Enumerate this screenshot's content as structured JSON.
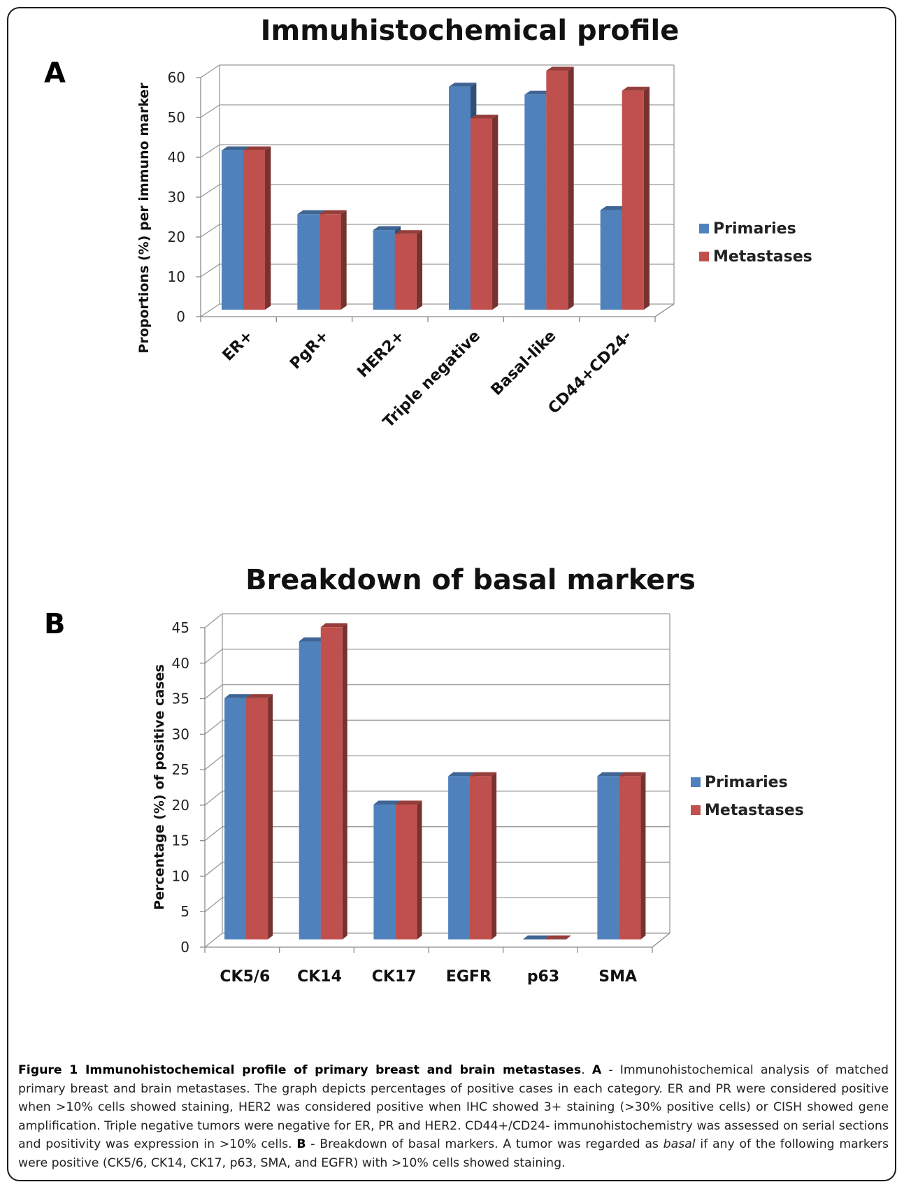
{
  "panels": {
    "a": "A",
    "b": "B"
  },
  "chart_data": [
    {
      "type": "bar",
      "title": "Immuhistochemical profile",
      "xlabel": "",
      "ylabel": "Proportions (%) per immuno marker",
      "ylim": [
        0,
        60
      ],
      "yticks": [
        0,
        10,
        20,
        30,
        40,
        50,
        60
      ],
      "grid": true,
      "legend": "right",
      "categories": [
        "ER+",
        "PgR+",
        "HER2+",
        "Triple negative",
        "Basal-like",
        "CD44+CD24-"
      ],
      "series": [
        {
          "name": "Primaries",
          "values": [
            40,
            24,
            20,
            56,
            54,
            25
          ],
          "color": "#4f81bd"
        },
        {
          "name": "Metastases",
          "values": [
            40,
            24,
            19,
            48,
            60,
            55
          ],
          "color": "#c0504d"
        }
      ]
    },
    {
      "type": "bar",
      "title": "Breakdown of basal markers",
      "xlabel": "",
      "ylabel": "Percentage (%) of positive cases",
      "ylim": [
        0,
        45
      ],
      "yticks": [
        0,
        5,
        10,
        15,
        20,
        25,
        30,
        35,
        40,
        45
      ],
      "grid": true,
      "legend": "right",
      "categories": [
        "CK5/6",
        "CK14",
        "CK17",
        "EGFR",
        "p63",
        "SMA"
      ],
      "series": [
        {
          "name": "Primaries",
          "values": [
            34,
            42,
            19,
            23,
            0,
            23
          ],
          "color": "#4f81bd"
        },
        {
          "name": "Metastases",
          "values": [
            34,
            44,
            19,
            23,
            0,
            23
          ],
          "color": "#c0504d"
        }
      ]
    }
  ],
  "caption": {
    "label": "Figure 1 Immunohistochemical profile of primary breast and brain metastases",
    "sep1": ". ",
    "a_label": "A",
    "a_text": " - Immunohistochemical analysis of matched primary breast and brain metastases. The graph depicts percentages of positive cases in each category. ER and PR were considered positive when >10% cells showed staining, HER2 was considered positive when IHC showed 3+ staining (>30% positive cells) or CISH showed gene amplification. Triple negative tumors were negative for ER, PR and HER2. CD44+/CD24- immunohistochemistry was assessed on serial sections and positivity was expression in >10% cells. ",
    "b_label": "B",
    "b_text1": " - Breakdown of basal markers. A tumor was regarded as ",
    "b_italic": "basal",
    "b_text2": " if any of the following markers were positive (CK5/6, CK14, CK17, p63, SMA, and EGFR) with >10% cells showed staining."
  }
}
